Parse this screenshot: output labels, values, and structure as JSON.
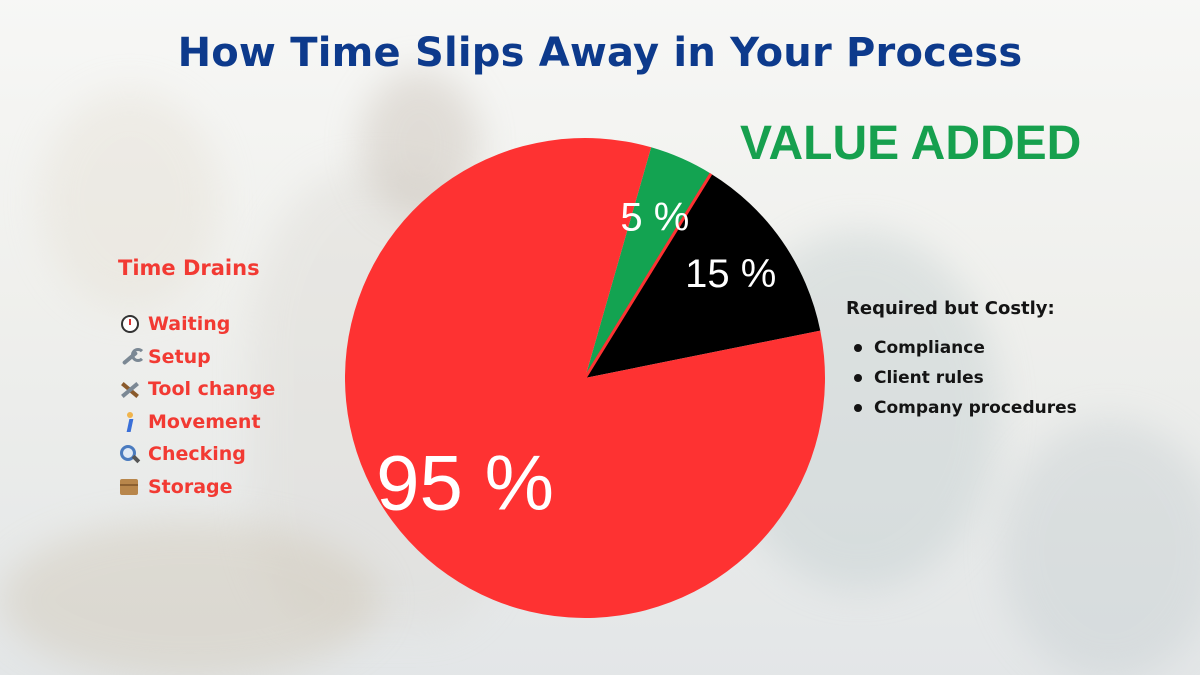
{
  "title": "How Time Slips Away in Your Process",
  "value_added_label": "VALUE ADDED",
  "time_drains": {
    "heading": "Time Drains",
    "items": [
      {
        "icon": "stopwatch-icon",
        "label": "Waiting"
      },
      {
        "icon": "wrench-icon",
        "label": "Setup"
      },
      {
        "icon": "hammer-and-wrench-icon",
        "label": "Tool change"
      },
      {
        "icon": "person-walking-icon",
        "label": "Movement"
      },
      {
        "icon": "magnifying-glass-icon",
        "label": "Checking"
      },
      {
        "icon": "package-icon",
        "label": "Storage"
      }
    ]
  },
  "required_but_costly": {
    "heading": "Required but Costly:",
    "items": [
      "Compliance",
      "Client rules",
      "Company procedures"
    ]
  },
  "colors": {
    "title": "#0d3a8c",
    "value_added": "#16a04e",
    "time_drains": "#f23a33",
    "slice_waste": "#fe3232",
    "slice_value": "#13a351",
    "slice_required": "#000000"
  },
  "chart_data": {
    "type": "pie",
    "title": "",
    "note": "Labels as printed: 95 %, 5 %, 15 %",
    "slices": [
      {
        "label": "5 %",
        "value": 5,
        "color": "#13a351"
      },
      {
        "label": "15 %",
        "value": 15,
        "color": "#000000"
      },
      {
        "label": "95 %",
        "value": 95,
        "color": "#fe3232"
      }
    ]
  }
}
